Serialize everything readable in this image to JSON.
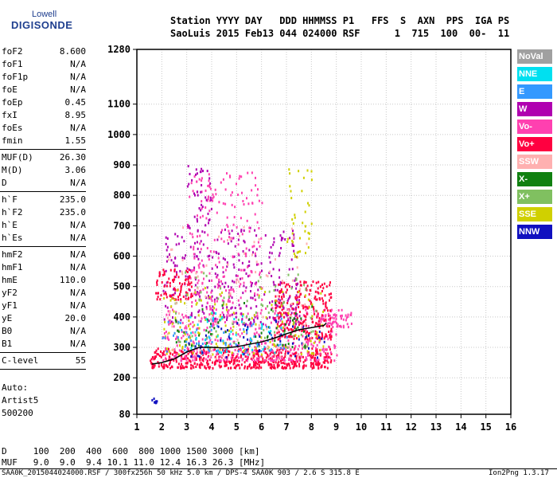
{
  "logo": {
    "line1": "Lowell",
    "line2": "DIGISONDE"
  },
  "header": {
    "line1": "Station YYYY DAY   DDD HHMMSS P1   FFS  S  AXN  PPS  IGA PS",
    "line2": "SaoLuis 2015 Feb13 044 024000 RSF      1  715  100  00-  11"
  },
  "params": [
    {
      "name": "foF2",
      "value": "8.600"
    },
    {
      "name": "foF1",
      "value": "N/A"
    },
    {
      "name": "foF1p",
      "value": "N/A"
    },
    {
      "name": "foE",
      "value": "N/A"
    },
    {
      "name": "foEp",
      "value": "0.45"
    },
    {
      "name": "fxI",
      "value": "8.95"
    },
    {
      "name": "foEs",
      "value": "N/A"
    },
    {
      "name": "fmin",
      "value": "1.55"
    },
    {
      "name": "MUF(D)",
      "value": "26.30"
    },
    {
      "name": "M(D)",
      "value": "3.06"
    },
    {
      "name": "D",
      "value": "N/A"
    },
    {
      "name": "h`F",
      "value": "235.0"
    },
    {
      "name": "h`F2",
      "value": "235.0"
    },
    {
      "name": "h`E",
      "value": "N/A"
    },
    {
      "name": "h`Es",
      "value": "N/A"
    },
    {
      "name": "hmF2",
      "value": "N/A"
    },
    {
      "name": "hmF1",
      "value": "N/A"
    },
    {
      "name": "hmE",
      "value": "110.0"
    },
    {
      "name": "yF2",
      "value": "N/A"
    },
    {
      "name": "yF1",
      "value": "N/A"
    },
    {
      "name": "yE",
      "value": "20.0"
    },
    {
      "name": "B0",
      "value": "N/A"
    },
    {
      "name": "B1",
      "value": "N/A"
    },
    {
      "name": "C-level",
      "value": "55"
    }
  ],
  "auto": {
    "line1": "Auto:",
    "line2": "Artist5",
    "line3": "500200"
  },
  "legend": [
    {
      "label": "NoVal",
      "color": "#a0a0a0"
    },
    {
      "label": "NNE",
      "color": "#00e0f0"
    },
    {
      "label": "E",
      "color": "#3399ff"
    },
    {
      "label": "W",
      "color": "#b000b0"
    },
    {
      "label": "Vo-",
      "color": "#ff40b0"
    },
    {
      "label": "Vo+",
      "color": "#ff0040"
    },
    {
      "label": "SSW",
      "color": "#ffb0b0"
    },
    {
      "label": "X-",
      "color": "#108010"
    },
    {
      "label": "X+",
      "color": "#80c060"
    },
    {
      "label": "SSE",
      "color": "#d0d000"
    },
    {
      "label": "NNW",
      "color": "#1010c0"
    }
  ],
  "chart_data": {
    "type": "scatter",
    "xlim": [
      1,
      16
    ],
    "ylim": [
      80,
      1280
    ],
    "x_ticks": [
      "1",
      "2",
      "3",
      "4",
      "5",
      "6",
      "7",
      "8",
      "9",
      "10",
      "11",
      "12",
      "13",
      "14",
      "15",
      "16"
    ],
    "y_ticks": [
      {
        "value": 80,
        "label": "80"
      },
      {
        "value": 200,
        "label": "200"
      },
      {
        "value": 300,
        "label": "300"
      },
      {
        "value": 400,
        "label": "400"
      },
      {
        "value": 500,
        "label": "500"
      },
      {
        "value": 600,
        "label": "600"
      },
      {
        "value": 700,
        "label": "700"
      },
      {
        "value": 800,
        "label": "800"
      },
      {
        "value": 900,
        "label": "900"
      },
      {
        "value": 1000,
        "label": "1000"
      },
      {
        "value": 1100,
        "label": "1100"
      },
      {
        "value": 1280,
        "label": "1280"
      }
    ],
    "grid": true,
    "trace": [
      [
        1.6,
        245
      ],
      [
        2.0,
        250
      ],
      [
        2.5,
        262
      ],
      [
        3.0,
        285
      ],
      [
        3.5,
        300
      ],
      [
        4.0,
        300
      ],
      [
        4.5,
        298
      ],
      [
        5.0,
        302
      ],
      [
        5.5,
        310
      ],
      [
        6.0,
        318
      ],
      [
        6.5,
        330
      ],
      [
        7.0,
        345
      ],
      [
        7.5,
        358
      ],
      [
        8.0,
        365
      ],
      [
        8.5,
        372
      ],
      [
        8.6,
        380
      ]
    ],
    "regions": [
      {
        "color": "#ff0040",
        "xmin": 1.5,
        "xmax": 8.8,
        "ymin": 235,
        "ymax": 300,
        "count": 520
      },
      {
        "color": "#ff40b0",
        "xmin": 2.0,
        "xmax": 9.0,
        "ymin": 260,
        "ymax": 440,
        "count": 420
      },
      {
        "color": "#ff0040",
        "xmin": 6.5,
        "xmax": 8.8,
        "ymin": 330,
        "ymax": 520,
        "count": 260
      },
      {
        "color": "#b000b0",
        "xmin": 2.0,
        "xmax": 7.5,
        "ymin": 380,
        "ymax": 700,
        "count": 320
      },
      {
        "color": "#ff40b0",
        "xmin": 3.0,
        "xmax": 6.0,
        "ymin": 450,
        "ymax": 880,
        "count": 220
      },
      {
        "color": "#ff0040",
        "xmin": 1.7,
        "xmax": 3.2,
        "ymin": 460,
        "ymax": 560,
        "count": 90
      },
      {
        "color": "#d0d000",
        "xmin": 2.0,
        "xmax": 8.5,
        "ymin": 280,
        "ymax": 500,
        "count": 140
      },
      {
        "color": "#80c060",
        "xmin": 2.5,
        "xmax": 8.2,
        "ymin": 300,
        "ymax": 560,
        "count": 80
      },
      {
        "color": "#108010",
        "xmin": 2.5,
        "xmax": 8.0,
        "ymin": 300,
        "ymax": 450,
        "count": 60
      },
      {
        "color": "#3399ff",
        "xmin": 2.0,
        "xmax": 7.0,
        "ymin": 290,
        "ymax": 400,
        "count": 70
      },
      {
        "color": "#00e0f0",
        "xmin": 3.0,
        "xmax": 7.0,
        "ymin": 280,
        "ymax": 420,
        "count": 50
      },
      {
        "color": "#1010c0",
        "xmin": 3.0,
        "xmax": 8.5,
        "ymin": 270,
        "ymax": 400,
        "count": 50
      },
      {
        "color": "#ffb0b0",
        "xmin": 2.0,
        "xmax": 8.0,
        "ymin": 260,
        "ymax": 700,
        "count": 90
      },
      {
        "color": "#d0d000",
        "xmin": 7.0,
        "xmax": 8.0,
        "ymin": 600,
        "ymax": 900,
        "count": 40
      },
      {
        "color": "#b000b0",
        "xmin": 3.0,
        "xmax": 4.0,
        "ymin": 700,
        "ymax": 900,
        "count": 40
      },
      {
        "color": "#ff40b0",
        "xmin": 8.6,
        "xmax": 9.6,
        "ymin": 370,
        "ymax": 430,
        "count": 40
      },
      {
        "color": "#1010c0",
        "xmin": 1.5,
        "xmax": 1.9,
        "ymin": 120,
        "ymax": 135,
        "count": 8
      }
    ]
  },
  "footer": {
    "line1": "D     100  200  400  600  800 1000 1500 3000 [km]",
    "line2": "MUF   9.0  9.0  9.4 10.1 11.0 12.4 16.3 26.3 [MHz]",
    "line3": "SAA0K_2015044024000.RSF / 300fx256h 50 kHz 5.0 km / DPS-4 SAA0K 903 / 2.6 S 315.8 E",
    "version": "Ion2Png 1.3.17"
  }
}
